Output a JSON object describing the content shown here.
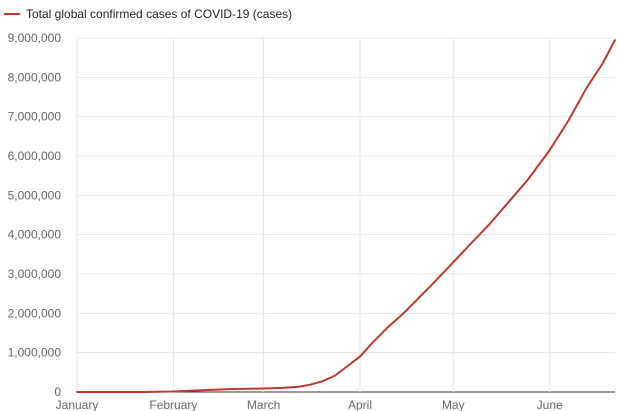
{
  "chart_data": {
    "type": "line",
    "title": "",
    "xlabel": "",
    "ylabel": "",
    "legend_placement": "top-left",
    "grid": true,
    "ylim": [
      0,
      9000000
    ],
    "xlim": [
      "2020-01-01",
      "2020-06-22"
    ],
    "x_ticks": [
      {
        "date": "2020-01-01",
        "label": "January"
      },
      {
        "date": "2020-02-01",
        "label": "February"
      },
      {
        "date": "2020-03-01",
        "label": "March"
      },
      {
        "date": "2020-04-01",
        "label": "April"
      },
      {
        "date": "2020-05-01",
        "label": "May"
      },
      {
        "date": "2020-06-01",
        "label": "June"
      }
    ],
    "y_ticks": [
      0,
      1000000,
      2000000,
      3000000,
      4000000,
      5000000,
      6000000,
      7000000,
      8000000,
      9000000
    ],
    "y_tick_labels": [
      "0",
      "1,000,000",
      "2,000,000",
      "3,000,000",
      "4,000,000",
      "5,000,000",
      "6,000,000",
      "7,000,000",
      "8,000,000",
      "9,000,000"
    ],
    "series": [
      {
        "name": "Total global confirmed cases of COVID-19 (cases)",
        "color": "#c0392b",
        "points": [
          [
            "2020-01-01",
            0
          ],
          [
            "2020-01-22",
            600
          ],
          [
            "2020-02-01",
            12000
          ],
          [
            "2020-02-10",
            43000
          ],
          [
            "2020-02-20",
            76000
          ],
          [
            "2020-03-01",
            88000
          ],
          [
            "2020-03-07",
            105000
          ],
          [
            "2020-03-12",
            130000
          ],
          [
            "2020-03-16",
            185000
          ],
          [
            "2020-03-20",
            275000
          ],
          [
            "2020-03-24",
            420000
          ],
          [
            "2020-03-28",
            660000
          ],
          [
            "2020-04-01",
            900000
          ],
          [
            "2020-04-05",
            1250000
          ],
          [
            "2020-04-10",
            1650000
          ],
          [
            "2020-04-15",
            2000000
          ],
          [
            "2020-04-20",
            2400000
          ],
          [
            "2020-04-25",
            2800000
          ],
          [
            "2020-05-01",
            3300000
          ],
          [
            "2020-05-07",
            3800000
          ],
          [
            "2020-05-13",
            4300000
          ],
          [
            "2020-05-19",
            4850000
          ],
          [
            "2020-05-25",
            5400000
          ],
          [
            "2020-06-01",
            6150000
          ],
          [
            "2020-06-07",
            6900000
          ],
          [
            "2020-06-13",
            7750000
          ],
          [
            "2020-06-18",
            8350000
          ],
          [
            "2020-06-22",
            8950000
          ]
        ]
      }
    ]
  }
}
